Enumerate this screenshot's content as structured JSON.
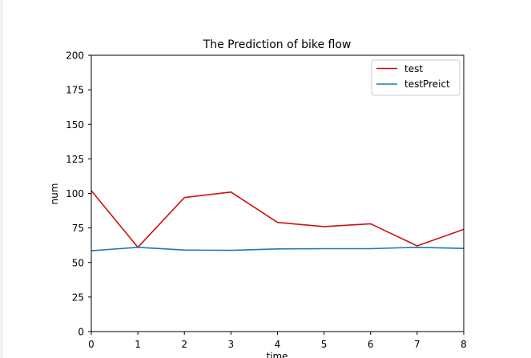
{
  "chart_data": {
    "type": "line",
    "title": "The Prediction of bike flow",
    "xlabel": "time",
    "ylabel": "num",
    "x": [
      0,
      1,
      2,
      3,
      4,
      5,
      6,
      7,
      8
    ],
    "xlim": [
      0,
      8
    ],
    "ylim": [
      0,
      200
    ],
    "xticks": [
      "0",
      "1",
      "2",
      "3",
      "4",
      "5",
      "6",
      "7",
      "8"
    ],
    "yticks": [
      "0",
      "25",
      "50",
      "75",
      "100",
      "125",
      "150",
      "175",
      "200"
    ],
    "grid": false,
    "legend_position": "top-right",
    "series": [
      {
        "name": "test",
        "color": "#cc1111",
        "values": [
          102,
          61,
          97,
          101,
          79,
          76,
          78,
          62,
          74
        ]
      },
      {
        "name": "testPreict",
        "color": "#1f77b4",
        "values": [
          58.5,
          61,
          59,
          58.8,
          59.8,
          60,
          60,
          61,
          60.2
        ]
      }
    ]
  }
}
